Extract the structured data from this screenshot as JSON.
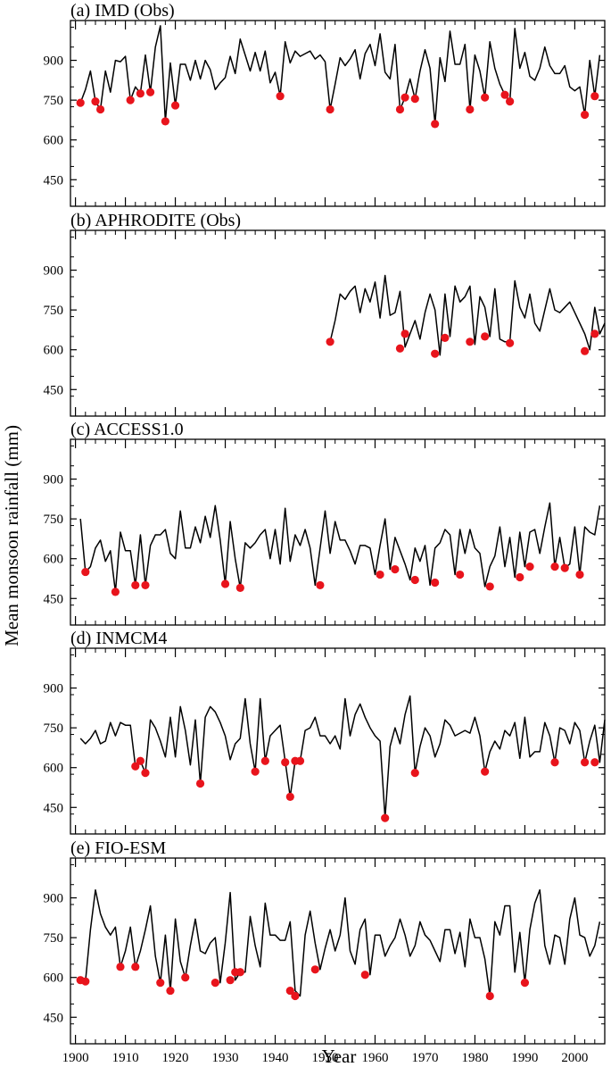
{
  "figure": {
    "ylabel": "Mean monsoon rainfall (mm)",
    "xlabel": "Year",
    "line_color": "#000000",
    "marker_color": "#e8141c"
  },
  "chart_data": [
    {
      "type": "line",
      "title": "(a) IMD (Obs)",
      "ylim": [
        350,
        1050
      ],
      "yticks": [
        450,
        600,
        750,
        900
      ],
      "xlim": [
        1899,
        2006
      ],
      "xticks": [
        1900,
        1910,
        1920,
        1930,
        1940,
        1950,
        1960,
        1970,
        1980,
        1990,
        2000
      ],
      "x_start": 1901,
      "values": [
        740,
        790,
        860,
        745,
        715,
        860,
        780,
        900,
        895,
        915,
        750,
        800,
        775,
        920,
        780,
        950,
        1030,
        670,
        890,
        730,
        885,
        885,
        825,
        900,
        830,
        900,
        865,
        790,
        815,
        835,
        915,
        850,
        980,
        920,
        860,
        930,
        860,
        935,
        815,
        855,
        765,
        970,
        890,
        935,
        915,
        925,
        935,
        905,
        920,
        895,
        715,
        810,
        910,
        880,
        905,
        940,
        830,
        925,
        960,
        880,
        1000,
        855,
        830,
        960,
        715,
        760,
        830,
        755,
        860,
        940,
        870,
        660,
        910,
        820,
        1010,
        885,
        885,
        960,
        715,
        920,
        860,
        760,
        970,
        870,
        810,
        770,
        745,
        1020,
        870,
        930,
        840,
        825,
        870,
        950,
        880,
        850,
        850,
        880,
        800,
        785,
        800,
        695,
        900,
        765,
        920
      ],
      "markers": [
        [
          1901,
          740
        ],
        [
          1904,
          745
        ],
        [
          1905,
          715
        ],
        [
          1911,
          750
        ],
        [
          1913,
          775
        ],
        [
          1915,
          780
        ],
        [
          1918,
          670
        ],
        [
          1920,
          730
        ],
        [
          1941,
          765
        ],
        [
          1951,
          715
        ],
        [
          1965,
          715
        ],
        [
          1966,
          760
        ],
        [
          1968,
          755
        ],
        [
          1972,
          660
        ],
        [
          1979,
          715
        ],
        [
          1982,
          760
        ],
        [
          1986,
          770
        ],
        [
          1987,
          745
        ],
        [
          2002,
          695
        ],
        [
          2004,
          765
        ]
      ]
    },
    {
      "type": "line",
      "title": "(b) APHRODITE (Obs)",
      "ylim": [
        350,
        1050
      ],
      "yticks": [
        450,
        600,
        750,
        900
      ],
      "xlim": [
        1899,
        2006
      ],
      "xticks": [
        1900,
        1910,
        1920,
        1930,
        1940,
        1950,
        1960,
        1970,
        1980,
        1990,
        2000
      ],
      "x_start": 1951,
      "values": [
        630,
        710,
        810,
        790,
        820,
        840,
        740,
        830,
        780,
        855,
        720,
        880,
        730,
        740,
        820,
        610,
        660,
        710,
        640,
        740,
        810,
        750,
        580,
        810,
        650,
        840,
        780,
        800,
        840,
        620,
        800,
        760,
        650,
        830,
        640,
        630,
        630,
        860,
        760,
        720,
        810,
        700,
        670,
        750,
        830,
        750,
        740,
        760,
        780,
        740,
        700,
        660,
        600,
        760,
        660,
        700
      ],
      "markers": [
        [
          1951,
          630
        ],
        [
          1965,
          605
        ],
        [
          1966,
          660
        ],
        [
          1972,
          585
        ],
        [
          1974,
          645
        ],
        [
          1979,
          630
        ],
        [
          1982,
          650
        ],
        [
          1987,
          625
        ],
        [
          2002,
          595
        ],
        [
          2004,
          660
        ]
      ]
    },
    {
      "type": "line",
      "title": "(c) ACCESS1.0",
      "ylim": [
        350,
        1050
      ],
      "yticks": [
        450,
        600,
        750,
        900
      ],
      "xlim": [
        1899,
        2006
      ],
      "xticks": [
        1900,
        1910,
        1920,
        1930,
        1940,
        1950,
        1960,
        1970,
        1980,
        1990,
        2000
      ],
      "x_start": 1901,
      "values": [
        750,
        550,
        570,
        640,
        670,
        590,
        630,
        475,
        700,
        630,
        630,
        500,
        690,
        500,
        650,
        690,
        690,
        710,
        620,
        600,
        780,
        640,
        640,
        720,
        660,
        760,
        680,
        800,
        670,
        505,
        740,
        600,
        490,
        660,
        640,
        660,
        690,
        710,
        600,
        710,
        580,
        790,
        590,
        690,
        650,
        710,
        640,
        500,
        640,
        780,
        620,
        740,
        670,
        670,
        630,
        580,
        650,
        650,
        640,
        540,
        650,
        750,
        560,
        680,
        630,
        580,
        520,
        640,
        590,
        650,
        500,
        640,
        660,
        710,
        690,
        540,
        710,
        620,
        710,
        640,
        620,
        495,
        570,
        610,
        720,
        570,
        680,
        530,
        700,
        570,
        700,
        710,
        620,
        720,
        810,
        570,
        680,
        565,
        580,
        720,
        540,
        720,
        700,
        690,
        800
      ],
      "markers": [
        [
          1902,
          550
        ],
        [
          1908,
          475
        ],
        [
          1912,
          500
        ],
        [
          1914,
          500
        ],
        [
          1930,
          505
        ],
        [
          1933,
          490
        ],
        [
          1949,
          500
        ],
        [
          1961,
          540
        ],
        [
          1964,
          560
        ],
        [
          1968,
          520
        ],
        [
          1972,
          510
        ],
        [
          1977,
          540
        ],
        [
          1983,
          495
        ],
        [
          1989,
          530
        ],
        [
          1991,
          570
        ],
        [
          1996,
          570
        ],
        [
          1998,
          565
        ],
        [
          2001,
          540
        ]
      ]
    },
    {
      "type": "line",
      "title": "(d) INMCM4",
      "ylim": [
        350,
        1050
      ],
      "yticks": [
        450,
        600,
        750,
        900
      ],
      "xlim": [
        1899,
        2006
      ],
      "xticks": [
        1900,
        1910,
        1920,
        1930,
        1940,
        1950,
        1960,
        1970,
        1980,
        1990,
        2000
      ],
      "x_start": 1901,
      "values": [
        710,
        690,
        710,
        740,
        690,
        700,
        770,
        720,
        770,
        760,
        760,
        605,
        625,
        580,
        780,
        750,
        700,
        640,
        790,
        640,
        830,
        740,
        610,
        780,
        540,
        790,
        830,
        810,
        770,
        720,
        630,
        690,
        710,
        860,
        690,
        585,
        860,
        625,
        720,
        740,
        760,
        625,
        490,
        625,
        625,
        740,
        750,
        790,
        720,
        720,
        690,
        720,
        670,
        860,
        720,
        800,
        840,
        790,
        750,
        720,
        700,
        410,
        680,
        750,
        690,
        800,
        870,
        580,
        680,
        750,
        720,
        640,
        690,
        780,
        760,
        720,
        730,
        740,
        730,
        790,
        720,
        585,
        660,
        700,
        670,
        740,
        720,
        770,
        635,
        790,
        640,
        660,
        660,
        770,
        720,
        620,
        750,
        740,
        690,
        770,
        740,
        620,
        700,
        760,
        620,
        780
      ],
      "markers": [
        [
          1912,
          605
        ],
        [
          1913,
          625
        ],
        [
          1914,
          580
        ],
        [
          1925,
          540
        ],
        [
          1936,
          585
        ],
        [
          1938,
          625
        ],
        [
          1942,
          620
        ],
        [
          1943,
          490
        ],
        [
          1944,
          625
        ],
        [
          1945,
          625
        ],
        [
          1962,
          410
        ],
        [
          1968,
          580
        ],
        [
          1982,
          585
        ],
        [
          1996,
          620
        ],
        [
          2002,
          620
        ],
        [
          2004,
          620
        ]
      ]
    },
    {
      "type": "line",
      "title": "(e) FIO-ESM",
      "ylim": [
        350,
        1050
      ],
      "yticks": [
        450,
        600,
        750,
        900
      ],
      "xlim": [
        1899,
        2006
      ],
      "xticks": [
        1900,
        1910,
        1920,
        1930,
        1940,
        1950,
        1960,
        1970,
        1980,
        1990,
        2000
      ],
      "x_start": 1901,
      "values": [
        590,
        585,
        780,
        930,
        840,
        790,
        760,
        790,
        640,
        700,
        790,
        640,
        700,
        780,
        870,
        680,
        580,
        760,
        550,
        820,
        660,
        600,
        720,
        820,
        700,
        690,
        730,
        750,
        580,
        730,
        920,
        590,
        620,
        620,
        830,
        720,
        640,
        880,
        760,
        760,
        740,
        740,
        810,
        550,
        530,
        760,
        850,
        730,
        630,
        710,
        780,
        700,
        760,
        900,
        700,
        650,
        780,
        820,
        610,
        760,
        760,
        680,
        720,
        750,
        820,
        760,
        680,
        720,
        810,
        760,
        740,
        700,
        660,
        780,
        780,
        690,
        770,
        640,
        820,
        750,
        750,
        670,
        530,
        810,
        760,
        870,
        870,
        620,
        770,
        580,
        780,
        880,
        930,
        720,
        650,
        760,
        750,
        650,
        820,
        900,
        760,
        750,
        680,
        720,
        810
      ],
      "markers": [
        [
          1901,
          590
        ],
        [
          1902,
          585
        ],
        [
          1909,
          640
        ],
        [
          1912,
          640
        ],
        [
          1917,
          580
        ],
        [
          1919,
          550
        ],
        [
          1922,
          600
        ],
        [
          1928,
          580
        ],
        [
          1931,
          590
        ],
        [
          1932,
          620
        ],
        [
          1933,
          620
        ],
        [
          1943,
          550
        ],
        [
          1944,
          530
        ],
        [
          1948,
          630
        ],
        [
          1958,
          610
        ],
        [
          1983,
          530
        ],
        [
          1990,
          580
        ]
      ]
    }
  ]
}
